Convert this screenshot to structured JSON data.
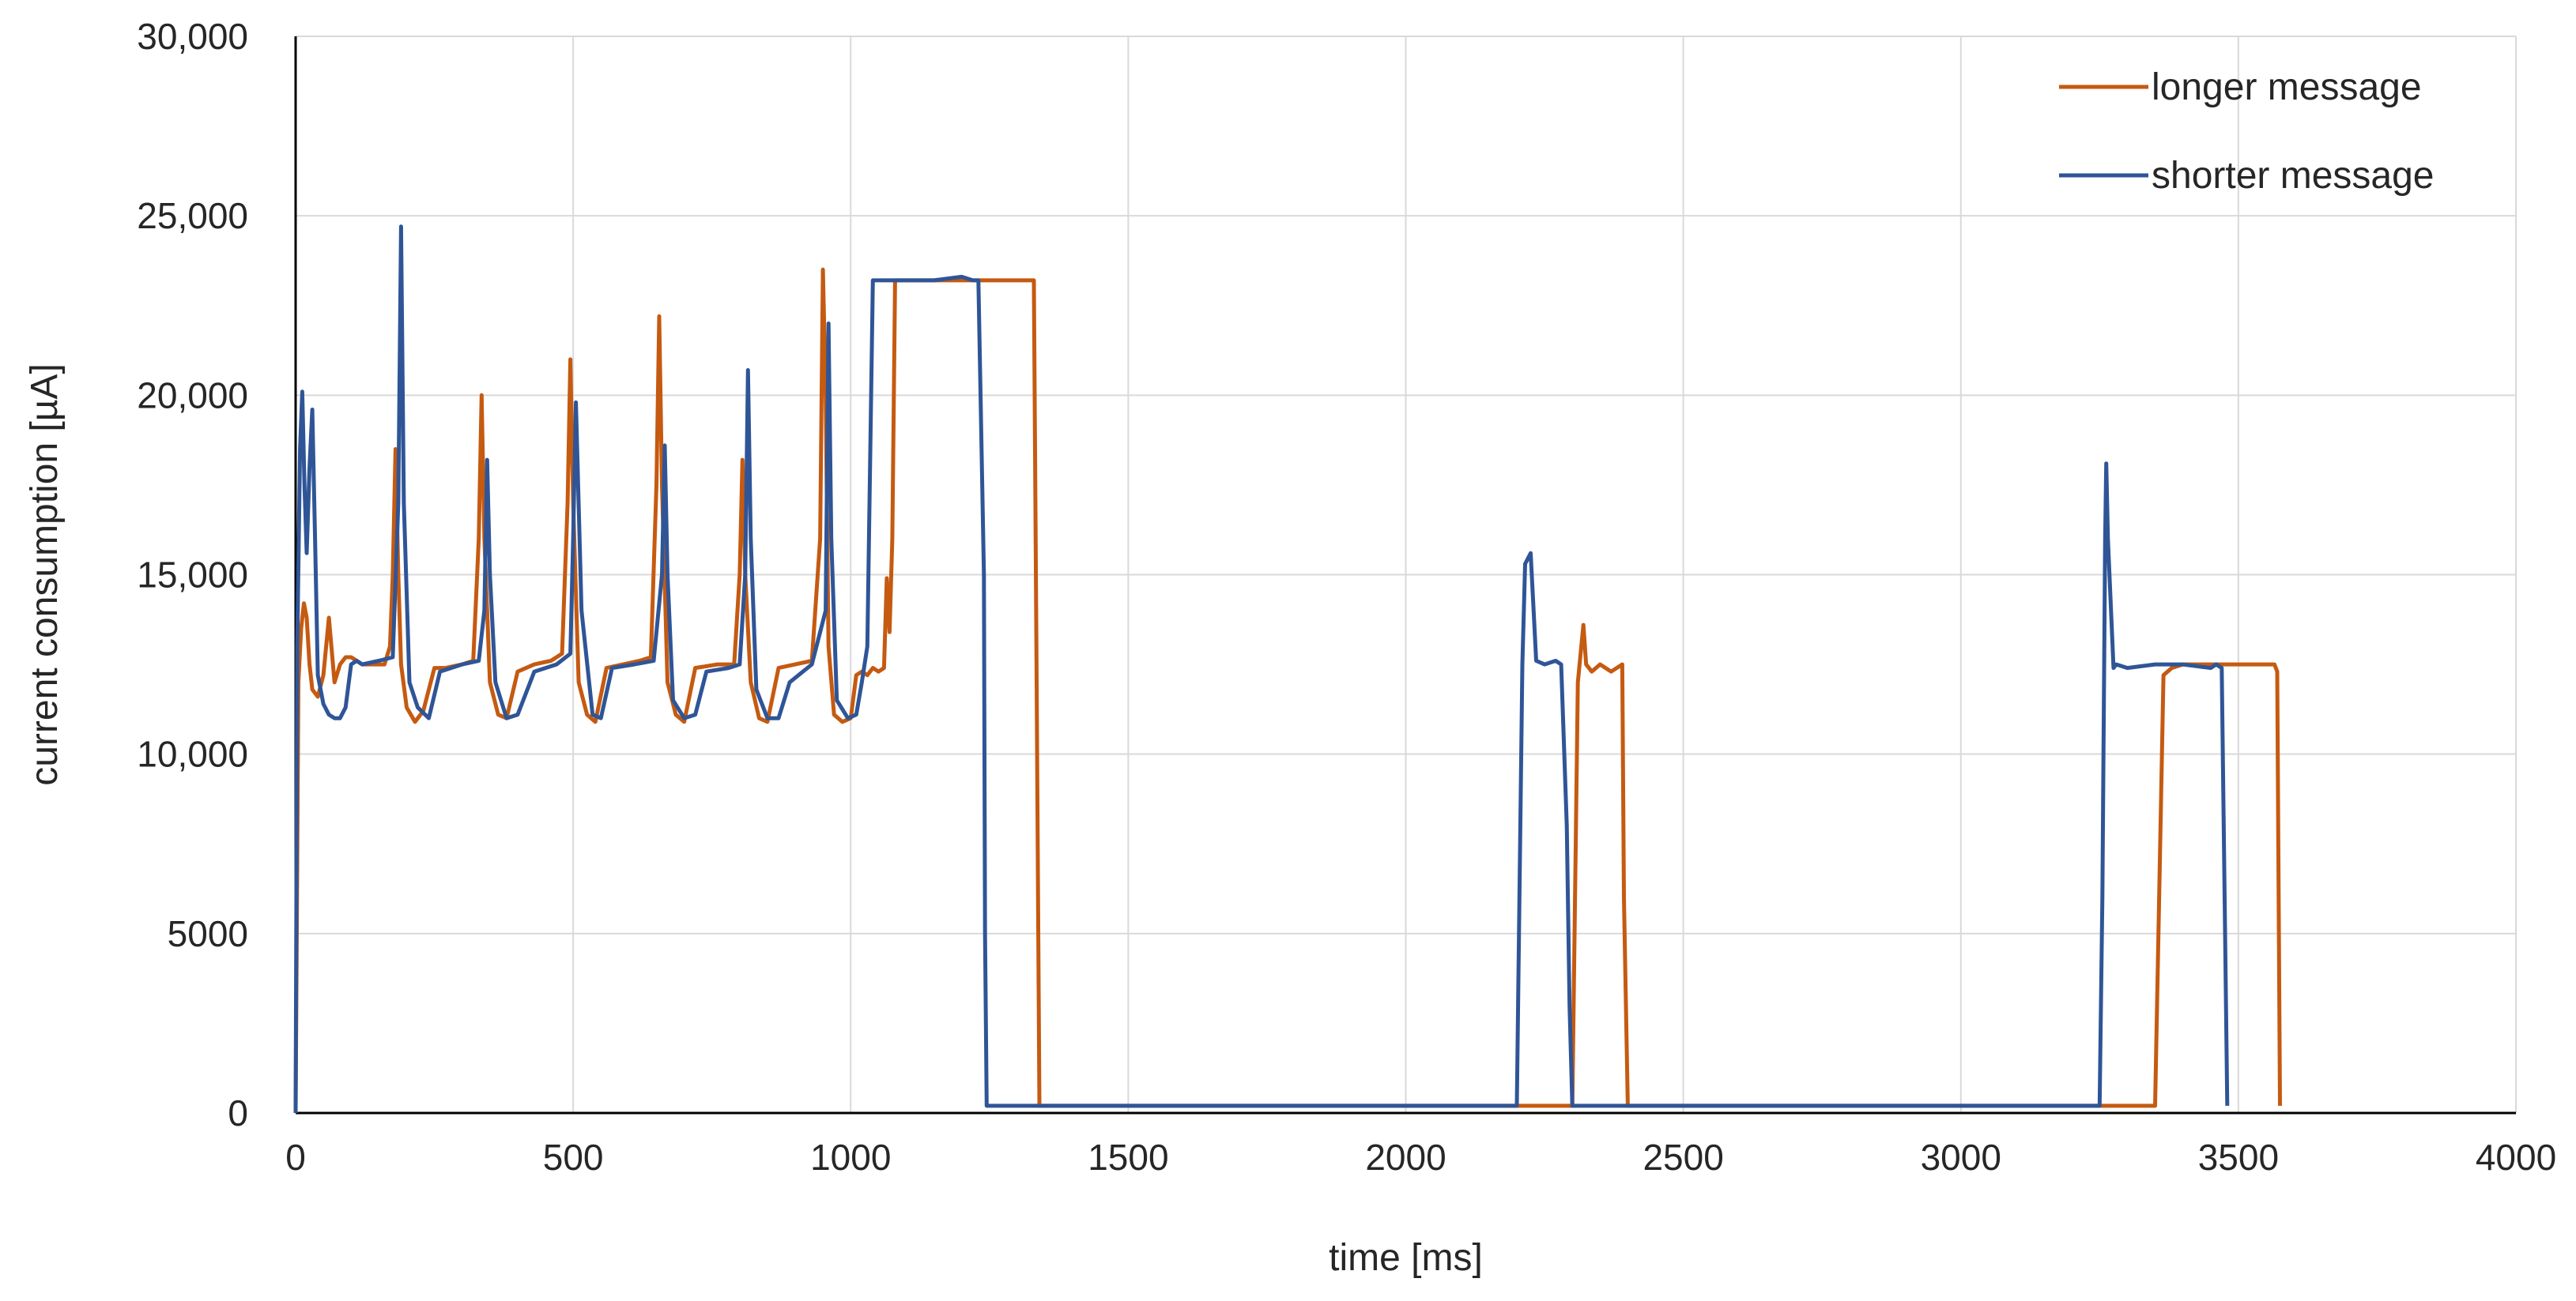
{
  "chart_data": {
    "type": "line",
    "title": "",
    "xlabel": "time [ms]",
    "ylabel": "current consumption [µA]",
    "xlim": [
      0,
      4000
    ],
    "ylim": [
      0,
      30000
    ],
    "xticks": [
      0,
      500,
      1000,
      1500,
      2000,
      2500,
      3000,
      3500,
      4000
    ],
    "xtick_labels": [
      "0",
      "500",
      "1000",
      "1500",
      "2000",
      "2500",
      "3000",
      "3500",
      "4000"
    ],
    "yticks": [
      0,
      5000,
      10000,
      15000,
      20000,
      25000,
      30000
    ],
    "ytick_labels": [
      "0",
      "5000",
      "10,000",
      "15,000",
      "20,000",
      "25,000",
      "30,000"
    ],
    "grid": true,
    "legend_position": "top-right",
    "series": [
      {
        "name": "longer message",
        "color": "#C55A11",
        "x": [
          0,
          5,
          10,
          15,
          20,
          25,
          30,
          40,
          50,
          60,
          70,
          80,
          90,
          100,
          110,
          120,
          140,
          160,
          170,
          175,
          180,
          185,
          190,
          200,
          215,
          230,
          250,
          270,
          300,
          320,
          330,
          335,
          340,
          350,
          365,
          380,
          400,
          430,
          460,
          480,
          490,
          495,
          500,
          510,
          525,
          540,
          560,
          590,
          620,
          640,
          650,
          655,
          660,
          670,
          685,
          700,
          720,
          760,
          790,
          800,
          805,
          810,
          820,
          835,
          850,
          870,
          900,
          930,
          945,
          950,
          955,
          960,
          970,
          985,
          1000,
          1010,
          1020,
          1030,
          1040,
          1050,
          1060,
          1065,
          1070,
          1075,
          1080,
          1090,
          1100,
          1150,
          1200,
          1250,
          1300,
          1330,
          1335,
          1340,
          1500,
          2000,
          2300,
          2310,
          2320,
          2325,
          2335,
          2350,
          2370,
          2390,
          2393,
          2400,
          3000,
          3350,
          3365,
          3380,
          3400,
          3450,
          3500,
          3550,
          3565,
          3570,
          3575
        ],
        "y": [
          0,
          12000,
          13500,
          14200,
          13800,
          12500,
          11800,
          11600,
          12200,
          13800,
          12000,
          12500,
          12700,
          12700,
          12600,
          12500,
          12500,
          12500,
          13000,
          15000,
          18500,
          15000,
          12500,
          11300,
          10900,
          11200,
          12400,
          12400,
          12500,
          12600,
          16000,
          20000,
          16000,
          12000,
          11100,
          11000,
          12300,
          12500,
          12600,
          12800,
          17000,
          21000,
          17000,
          12000,
          11100,
          10900,
          12400,
          12500,
          12600,
          12700,
          17500,
          22200,
          17500,
          12000,
          11100,
          10900,
          12400,
          12500,
          12500,
          15000,
          18200,
          15000,
          12000,
          11000,
          10900,
          12400,
          12500,
          12600,
          16000,
          23500,
          20000,
          13000,
          11100,
          10900,
          11000,
          12200,
          12300,
          12200,
          12400,
          12300,
          12400,
          14900,
          13400,
          16000,
          23200,
          23200,
          23200,
          23200,
          23200,
          23200,
          23200,
          23200,
          12000,
          200,
          200,
          200,
          200,
          12000,
          13600,
          12500,
          12300,
          12500,
          12300,
          12500,
          6000,
          200,
          200,
          200,
          12200,
          12400,
          12500,
          12500,
          12500,
          12500,
          12500,
          12300,
          200
        ]
      },
      {
        "name": "shorter message",
        "color": "#2F5597",
        "x": [
          0,
          3,
          8,
          12,
          16,
          20,
          25,
          30,
          35,
          40,
          50,
          60,
          70,
          80,
          90,
          100,
          110,
          120,
          150,
          175,
          185,
          190,
          195,
          205,
          220,
          240,
          260,
          300,
          330,
          340,
          345,
          350,
          360,
          380,
          400,
          430,
          470,
          495,
          500,
          505,
          515,
          535,
          550,
          570,
          610,
          645,
          660,
          665,
          670,
          680,
          700,
          720,
          740,
          780,
          800,
          810,
          815,
          820,
          830,
          850,
          870,
          890,
          930,
          955,
          960,
          965,
          975,
          995,
          1010,
          1020,
          1030,
          1040,
          1100,
          1150,
          1200,
          1220,
          1230,
          1240,
          1242,
          1245,
          1500,
          2000,
          2200,
          2210,
          2215,
          2225,
          2235,
          2250,
          2270,
          2280,
          2290,
          2295,
          2300,
          3000,
          3250,
          3255,
          3260,
          3262,
          3265,
          3275,
          3280,
          3300,
          3350,
          3400,
          3450,
          3460,
          3470,
          3480
        ],
        "y": [
          0,
          13000,
          18500,
          20100,
          17500,
          15600,
          18000,
          19600,
          16000,
          12200,
          11400,
          11100,
          11000,
          11000,
          11300,
          12500,
          12600,
          12500,
          12600,
          12700,
          17000,
          24700,
          17000,
          12000,
          11300,
          11000,
          12300,
          12500,
          12600,
          14000,
          18200,
          15000,
          12000,
          11000,
          11100,
          12300,
          12500,
          12800,
          16000,
          19800,
          14000,
          11100,
          11000,
          12400,
          12500,
          12600,
          15000,
          18600,
          15000,
          11500,
          11000,
          11100,
          12300,
          12400,
          12500,
          15000,
          20700,
          16000,
          11800,
          11000,
          11000,
          12000,
          12500,
          14000,
          22000,
          16000,
          11500,
          11000,
          11100,
          12000,
          13000,
          23200,
          23200,
          23200,
          23300,
          23200,
          23200,
          15000,
          5000,
          200,
          200,
          200,
          200,
          12500,
          15300,
          15600,
          12600,
          12500,
          12600,
          12500,
          8000,
          3000,
          200,
          200,
          200,
          6000,
          16000,
          18100,
          16000,
          12400,
          12500,
          12400,
          12500,
          12500,
          12400,
          12500,
          12400,
          200
        ]
      }
    ]
  }
}
